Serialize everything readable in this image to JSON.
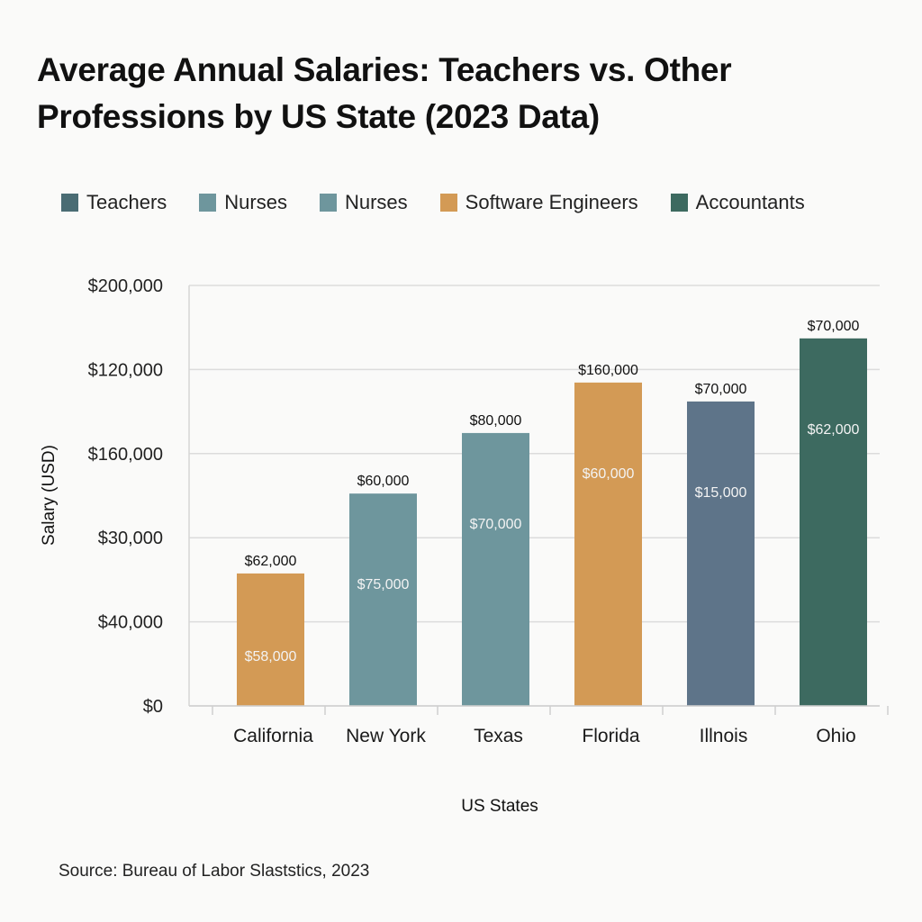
{
  "chart_data": {
    "type": "bar",
    "title": "Average Annual Salaries: Teachers vs. Other Professions by US State (2023 Data)",
    "xlabel": "US States",
    "ylabel": "Salary (USD)",
    "source": "Source: Bureau of Labor Slaststics, 2023",
    "legend": {
      "position": "top",
      "entries": [
        {
          "label": "Teachers",
          "color": "#4a6c74"
        },
        {
          "label": "Nurses",
          "color": "#6e969d"
        },
        {
          "label": "Nurses",
          "color": "#6e969d"
        },
        {
          "label": "Software Engineers",
          "color": "#d39a55"
        },
        {
          "label": "Accountants",
          "color": "#3d6a60"
        }
      ]
    },
    "y_ticks": [
      "$0",
      "$40,000",
      "$30,000",
      "$160,000",
      "$120,000",
      "$200,000"
    ],
    "grid": true,
    "categories": [
      "California",
      "New York",
      "Texas",
      "Florida",
      "Illnois",
      "Ohio"
    ],
    "bars": [
      {
        "category": "California",
        "height_fraction_of_axis": 0.315,
        "top_label": "$62,000",
        "inner_label": "$58,000",
        "color": "#d39a55"
      },
      {
        "category": "New York",
        "height_fraction_of_axis": 0.505,
        "top_label": "$60,000",
        "inner_label": "$75,000",
        "color": "#6e969d"
      },
      {
        "category": "Texas",
        "height_fraction_of_axis": 0.649,
        "top_label": "$80,000",
        "inner_label": "$70,000",
        "color": "#6e969d"
      },
      {
        "category": "Florida",
        "height_fraction_of_axis": 0.769,
        "top_label": "$160,000",
        "inner_label": "$60,000",
        "color": "#d39a55"
      },
      {
        "category": "Illnois",
        "height_fraction_of_axis": 0.724,
        "top_label": "$70,000",
        "inner_label": "$15,000",
        "color": "#5e7489"
      },
      {
        "category": "Ohio",
        "height_fraction_of_axis": 0.874,
        "top_label": "$70,000",
        "inner_label": "$62,000",
        "color": "#3d6a60"
      }
    ]
  }
}
